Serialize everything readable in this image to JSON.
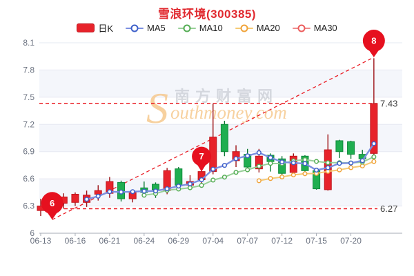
{
  "header": {
    "title": "雪浪环境(300385)",
    "title_color": "#e12a30"
  },
  "legend": {
    "kline_label": "日K",
    "ma_items": [
      {
        "label": "MA5",
        "color": "#3d5fc9",
        "line_color": "#7b8fe0"
      },
      {
        "label": "MA10",
        "color": "#55ad55",
        "line_color": "#97d097"
      },
      {
        "label": "MA20",
        "color": "#f0a33a",
        "line_color": "#f6ca74"
      },
      {
        "label": "MA30",
        "color": "#ec5c5c",
        "line_color": "#ef8a8a"
      }
    ]
  },
  "watermark": {
    "cn": "南方财富网",
    "en_big": "S",
    "en_rest": "outhmoney.com"
  },
  "colors": {
    "candle_up_fill": "#e7232b",
    "candle_up_stroke": "#c0151c",
    "candle_up_wick": "#9d1317",
    "candle_down_fill": "#1fae50",
    "candle_down_stroke": "#108a3c",
    "candle_down_wick": "#0c7a34",
    "reference_red": "#ea1c24",
    "balloon_red": "#e6101f",
    "band_tint": "#f4f6fb",
    "grid_line": "#e6e9f2",
    "axis_line": "#a6abb5",
    "tick_label": "#6b7280",
    "ref_label": "#3f3f3f",
    "watermark_cn": "#cdd0d7",
    "watermark_en": "#f6c98f"
  },
  "chart_data": {
    "type": "candlestick",
    "title": "雪浪环境(300385)",
    "ylim": [
      6,
      8.1
    ],
    "y_tick_step": 0.3,
    "y_tick_labels": [
      "6",
      "6.3",
      "6.6",
      "6.9",
      "7.2",
      "7.5",
      "7.8",
      "8.1"
    ],
    "x_tick_labels": [
      "06-13",
      "06-16",
      "06-21",
      "06-24",
      "06-29",
      "07-04",
      "07-07",
      "07-12",
      "07-15",
      "07-20"
    ],
    "x_tick_indices": [
      0,
      3,
      6,
      9,
      12,
      15,
      18,
      21,
      24,
      27
    ],
    "grid": true,
    "legend_position": "top",
    "ma_periods": {
      "MA5": 5,
      "MA10": 10,
      "MA20": 20,
      "MA30": 30
    },
    "candles": [
      {
        "date": "06-13",
        "open": 6.25,
        "close": 6.3,
        "high": 6.38,
        "low": 6.19
      },
      {
        "date": "06-14",
        "open": 6.3,
        "close": 6.32,
        "high": 6.35,
        "low": 6.27
      },
      {
        "date": "06-15",
        "open": 6.33,
        "close": 6.4,
        "high": 6.44,
        "low": 6.27
      },
      {
        "date": "06-16",
        "open": 6.34,
        "close": 6.43,
        "high": 6.45,
        "low": 6.3
      },
      {
        "date": "06-17",
        "open": 6.34,
        "close": 6.42,
        "high": 6.47,
        "low": 6.29
      },
      {
        "date": "06-20",
        "open": 6.43,
        "close": 6.47,
        "high": 6.53,
        "low": 6.36
      },
      {
        "date": "06-21",
        "open": 6.44,
        "close": 6.57,
        "high": 6.62,
        "low": 6.39
      },
      {
        "date": "06-22",
        "open": 6.56,
        "close": 6.38,
        "high": 6.58,
        "low": 6.35
      },
      {
        "date": "06-23",
        "open": 6.38,
        "close": 6.45,
        "high": 6.47,
        "low": 6.34
      },
      {
        "date": "06-24",
        "open": 6.5,
        "close": 6.45,
        "high": 6.57,
        "low": 6.4
      },
      {
        "date": "06-27",
        "open": 6.54,
        "close": 6.48,
        "high": 6.56,
        "low": 6.39
      },
      {
        "date": "06-28",
        "open": 6.47,
        "close": 6.69,
        "high": 6.72,
        "low": 6.43
      },
      {
        "date": "06-29",
        "open": 6.71,
        "close": 6.53,
        "high": 6.73,
        "low": 6.51
      },
      {
        "date": "06-30",
        "open": 6.53,
        "close": 6.57,
        "high": 6.64,
        "low": 6.51
      },
      {
        "date": "07-01",
        "open": 6.59,
        "close": 6.68,
        "high": 6.71,
        "low": 6.55
      },
      {
        "date": "07-04",
        "open": 6.68,
        "close": 7.06,
        "high": 7.43,
        "low": 6.65
      },
      {
        "date": "07-05",
        "open": 7.2,
        "close": 6.9,
        "high": 7.24,
        "low": 6.85
      },
      {
        "date": "07-06",
        "open": 6.8,
        "close": 6.9,
        "high": 6.97,
        "low": 6.73
      },
      {
        "date": "07-07",
        "open": 6.87,
        "close": 6.73,
        "high": 6.93,
        "low": 6.69
      },
      {
        "date": "07-08",
        "open": 6.71,
        "close": 6.85,
        "high": 6.93,
        "low": 6.67
      },
      {
        "date": "07-11",
        "open": 6.86,
        "close": 6.79,
        "high": 6.88,
        "low": 6.68
      },
      {
        "date": "07-12",
        "open": 6.82,
        "close": 6.66,
        "high": 6.85,
        "low": 6.63
      },
      {
        "date": "07-13",
        "open": 6.67,
        "close": 6.85,
        "high": 6.88,
        "low": 6.65
      },
      {
        "date": "07-14",
        "open": 6.85,
        "close": 6.69,
        "high": 6.86,
        "low": 6.67
      },
      {
        "date": "07-15",
        "open": 6.69,
        "close": 6.49,
        "high": 6.7,
        "low": 6.48
      },
      {
        "date": "07-18",
        "open": 6.48,
        "close": 6.92,
        "high": 7.09,
        "low": 6.47
      },
      {
        "date": "07-19",
        "open": 7.02,
        "close": 6.9,
        "high": 7.03,
        "low": 6.83
      },
      {
        "date": "07-20",
        "open": 7.01,
        "close": 6.87,
        "high": 7.02,
        "low": 6.82
      },
      {
        "date": "07-21",
        "open": 6.87,
        "close": 6.82,
        "high": 6.92,
        "low": 6.78
      },
      {
        "date": "07-22",
        "open": 6.88,
        "close": 7.43,
        "high": 7.93,
        "low": 6.85
      }
    ],
    "reference_lines": [
      {
        "value": 7.43,
        "label": "7.43"
      },
      {
        "value": 6.27,
        "label": "6.27"
      }
    ],
    "trend_line": {
      "from_index": 1,
      "from_value": 6.15,
      "to_index": 29,
      "to_value": 7.94
    },
    "balloons": [
      {
        "label": "6",
        "x_index": 1,
        "tip_value": 6.15,
        "r": 16
      },
      {
        "label": "7",
        "x_index": 14,
        "tip_value": 6.68,
        "r": 14
      },
      {
        "label": "8",
        "x_index": 29,
        "tip_value": 7.94,
        "r": 16
      }
    ]
  }
}
